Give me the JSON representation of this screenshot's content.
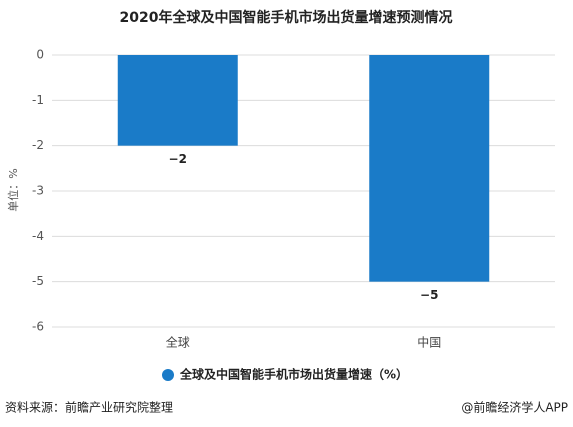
{
  "chart_data": {
    "type": "bar",
    "title": "2020年全球及中国智能手机市场出货量增速预测情况",
    "y_label": "单位：%",
    "categories": [
      "全球",
      "中国"
    ],
    "series": [
      {
        "name": "全球及中国智能手机市场出货量增速（%）",
        "color": "#1a7bc8",
        "values": [
          -2,
          -5
        ],
        "value_labels": [
          "−2",
          "−5"
        ]
      }
    ],
    "ylim": [
      -6,
      0
    ],
    "yticks": [
      0,
      -1,
      -2,
      -3,
      -4,
      -5,
      -6
    ],
    "grid": true
  },
  "source": "资料来源：前瞻产业研究院整理",
  "footer": "@前瞻经济学人APP"
}
